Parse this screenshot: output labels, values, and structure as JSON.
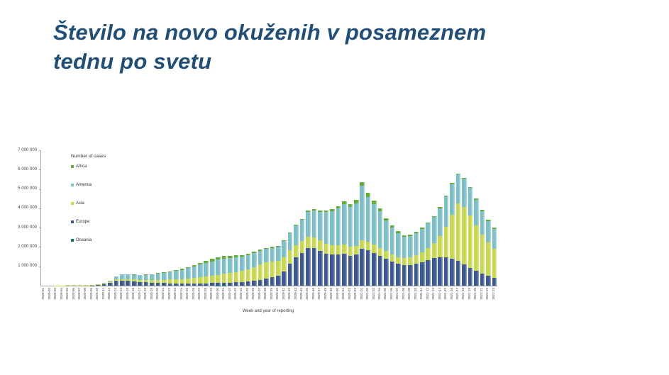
{
  "slide": {
    "title": "Število na novo okuženih v posameznem tednu po svetu",
    "title_lines": [
      "Število na novo okuženih v posameznem",
      "tednu po svetu"
    ],
    "title_color": "#1f4e79"
  },
  "chart_data": {
    "type": "bar",
    "stacked": true,
    "grid": false,
    "legend_title": "Number of cases",
    "legend_position": "top-left-inside",
    "xlabel": "Week and year of reporting",
    "ylabel": "",
    "ylim": [
      0,
      7000000
    ],
    "ytick_step": 1000000,
    "ytick_labels": [
      "1 000 000",
      "2 000 000",
      "3 000 000",
      "4 000 000",
      "5 000 000",
      "6 000 000",
      "7 000 000"
    ],
    "stack_order_bottom_to_top": [
      "Oceania",
      "Europe",
      "Asia",
      "America",
      "Africa"
    ],
    "categories": [
      "2020-01",
      "2020-02",
      "2020-03",
      "2020-04",
      "2020-05",
      "2020-06",
      "2020-07",
      "2020-08",
      "2020-09",
      "2020-10",
      "2020-11",
      "2020-12",
      "2020-13",
      "2020-14",
      "2020-15",
      "2020-16",
      "2020-17",
      "2020-18",
      "2020-19",
      "2020-20",
      "2020-21",
      "2020-22",
      "2020-23",
      "2020-24",
      "2020-25",
      "2020-26",
      "2020-27",
      "2020-28",
      "2020-29",
      "2020-30",
      "2020-31",
      "2020-32",
      "2020-33",
      "2020-34",
      "2020-35",
      "2020-36",
      "2020-37",
      "2020-38",
      "2020-39",
      "2020-40",
      "2020-41",
      "2020-42",
      "2020-43",
      "2020-44",
      "2020-45",
      "2020-46",
      "2020-47",
      "2020-48",
      "2020-49",
      "2020-50",
      "2020-51",
      "2020-52",
      "2020-53",
      "2021-01",
      "2021-02",
      "2021-03",
      "2021-04",
      "2021-05",
      "2021-06",
      "2021-07",
      "2021-08",
      "2021-09",
      "2021-10",
      "2021-11",
      "2021-12",
      "2021-13",
      "2021-14",
      "2021-15",
      "2021-16",
      "2021-17",
      "2021-18",
      "2021-19",
      "2021-20",
      "2021-21",
      "2021-22",
      "2021-23"
    ],
    "series": [
      {
        "name": "Africa",
        "color": "#5fae2f",
        "values": [
          0,
          0,
          0,
          0,
          0,
          0,
          0,
          100,
          200,
          400,
          1000,
          3000,
          8000,
          12000,
          15000,
          18000,
          21000,
          24000,
          28000,
          32000,
          37000,
          42000,
          48000,
          54000,
          61000,
          69000,
          78000,
          96000,
          116000,
          126000,
          120000,
          110000,
          96000,
          82000,
          72000,
          62000,
          56000,
          51000,
          48000,
          46000,
          45000,
          44000,
          44000,
          46000,
          50000,
          56000,
          65000,
          75000,
          90000,
          110000,
          130000,
          155000,
          185000,
          215000,
          200000,
          170000,
          140000,
          110000,
          90000,
          78000,
          70000,
          65000,
          62000,
          60000,
          60000,
          60000,
          60000,
          60000,
          58000,
          56000,
          56000,
          60000,
          65000,
          75000,
          85000,
          95000
        ]
      },
      {
        "name": "America",
        "color": "#7bbfca",
        "values": [
          0,
          0,
          0,
          100,
          200,
          300,
          400,
          700,
          1000,
          5000,
          16000,
          58000,
          148000,
          225000,
          238000,
          248000,
          248000,
          262000,
          288000,
          318000,
          352000,
          392000,
          432000,
          472000,
          532000,
          596000,
          656000,
          712000,
          756000,
          786000,
          792000,
          776000,
          756000,
          736000,
          722000,
          710000,
          705000,
          700000,
          700000,
          715000,
          820000,
          880000,
          1020000,
          1100000,
          1300000,
          1400000,
          1480000,
          1650000,
          1750000,
          1900000,
          2100000,
          2050000,
          2200000,
          2800000,
          2300000,
          2100000,
          1900000,
          1600000,
          1400000,
          1250000,
          1100000,
          1120000,
          1160000,
          1200000,
          1280000,
          1340000,
          1440000,
          1560000,
          1560000,
          1500000,
          1480000,
          1420000,
          1330000,
          1220000,
          1100000,
          1020000
        ]
      },
      {
        "name": "Asia",
        "color": "#c5d94a",
        "values": [
          1000,
          2000,
          5000,
          18000,
          42000,
          32000,
          46000,
          32000,
          30000,
          42000,
          48000,
          56000,
          66000,
          76000,
          86000,
          96000,
          106000,
          118000,
          136000,
          156000,
          176000,
          196000,
          216000,
          236000,
          266000,
          296000,
          322000,
          350000,
          372000,
          420000,
          460000,
          500000,
          540000,
          580000,
          640000,
          720000,
          790000,
          840000,
          820000,
          780000,
          730000,
          680000,
          640000,
          600000,
          570000,
          550000,
          530000,
          510000,
          500000,
          490000,
          480000,
          460000,
          440000,
          450000,
          440000,
          420000,
          400000,
          380000,
          370000,
          360000,
          370000,
          400000,
          450000,
          520000,
          620000,
          780000,
          1100000,
          1600000,
          2300000,
          2950000,
          2950000,
          2700000,
          2350000,
          2000000,
          1720000,
          1480000
        ]
      },
      {
        "name": "Europe",
        "color": "#3c5896",
        "values": [
          0,
          0,
          0,
          100,
          300,
          500,
          700,
          1000,
          6000,
          26000,
          68000,
          155000,
          245000,
          270000,
          245000,
          218000,
          192000,
          168000,
          152000,
          140000,
          130000,
          120000,
          114000,
          110000,
          110000,
          110000,
          115000,
          120000,
          130000,
          140000,
          150000,
          160000,
          172000,
          188000,
          210000,
          250000,
          300000,
          360000,
          430000,
          520000,
          750000,
          1150000,
          1450000,
          1700000,
          1950000,
          1950000,
          1800000,
          1650000,
          1600000,
          1600000,
          1650000,
          1550000,
          1620000,
          1900000,
          1850000,
          1700000,
          1550000,
          1400000,
          1250000,
          1120000,
          1050000,
          1060000,
          1120000,
          1220000,
          1320000,
          1420000,
          1460000,
          1450000,
          1380000,
          1300000,
          1100000,
          920000,
          760000,
          620000,
          500000,
          420000
        ]
      },
      {
        "name": "Oceania",
        "color": "#0e7d68",
        "values": [
          0,
          0,
          0,
          0,
          0,
          100,
          100,
          100,
          200,
          300,
          1200,
          2500,
          2800,
          1500,
          700,
          400,
          300,
          300,
          300,
          300,
          300,
          300,
          300,
          300,
          400,
          500,
          800,
          1500,
          2500,
          3200,
          3400,
          2800,
          2000,
          1400,
          900,
          600,
          500,
          400,
          400,
          400,
          400,
          400,
          400,
          400,
          400,
          400,
          400,
          400,
          500,
          500,
          500,
          500,
          500,
          400,
          400,
          400,
          350,
          350,
          350,
          350,
          350,
          400,
          400,
          450,
          450,
          500,
          500,
          500,
          500,
          550,
          550,
          600,
          600,
          650,
          700,
          750
        ]
      }
    ]
  }
}
